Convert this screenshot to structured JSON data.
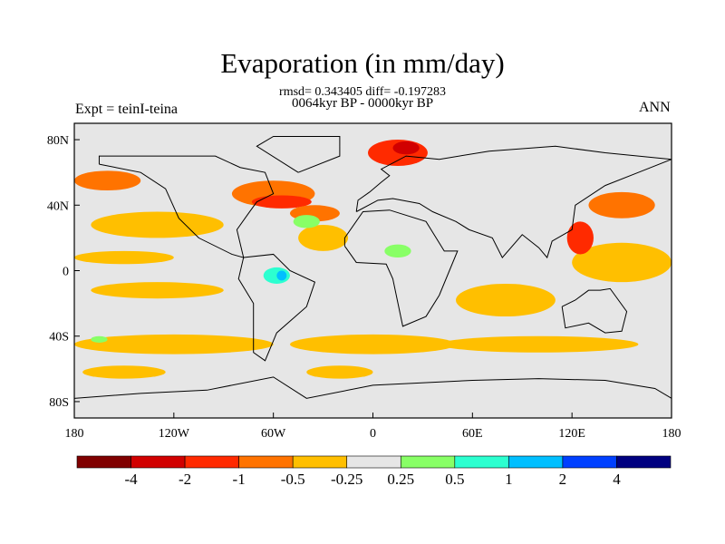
{
  "chart_data": {
    "type": "heatmap",
    "title": "Evaporation (in mm/day)",
    "subtitle_stats": "rmsd= 0.343405 diff= -0.197283",
    "subtitle_period": "0064kyr BP - 0000kyr BP",
    "left_label": "Expt = teinI-teina",
    "right_label": "ANN",
    "xlim": [
      -180,
      180
    ],
    "ylim": [
      -90,
      90
    ],
    "x_ticks": [
      {
        "v": -180,
        "label": "180"
      },
      {
        "v": -120,
        "label": "120W"
      },
      {
        "v": -60,
        "label": "60W"
      },
      {
        "v": 0,
        "label": "0"
      },
      {
        "v": 60,
        "label": "60E"
      },
      {
        "v": 120,
        "label": "120E"
      },
      {
        "v": 180,
        "label": "180"
      }
    ],
    "y_ticks": [
      {
        "v": 80,
        "label": "80N"
      },
      {
        "v": 40,
        "label": "40N"
      },
      {
        "v": 0,
        "label": "0"
      },
      {
        "v": -40,
        "label": "40S"
      },
      {
        "v": -80,
        "label": "80S"
      }
    ],
    "colorbar": {
      "colors": [
        "#800000",
        "#d10000",
        "#ff2a00",
        "#ff7300",
        "#ffbf00",
        "#e6e6e6",
        "#88ff66",
        "#2cffd0",
        "#00bfff",
        "#0040ff",
        "#000080"
      ],
      "labels": [
        "-4",
        "-2",
        "-1",
        "-0.5",
        "-0.25",
        "0.25",
        "0.5",
        "1",
        "2",
        "4"
      ]
    },
    "regions": [
      {
        "lon": -120,
        "lat": -45,
        "rx": 60,
        "ry": 6,
        "level": 4
      },
      {
        "lon": 0,
        "lat": -45,
        "rx": 50,
        "ry": 6,
        "level": 4
      },
      {
        "lon": 100,
        "lat": -45,
        "rx": 60,
        "ry": 5,
        "level": 4
      },
      {
        "lon": -150,
        "lat": -62,
        "rx": 25,
        "ry": 4,
        "level": 4
      },
      {
        "lon": -20,
        "lat": -62,
        "rx": 20,
        "ry": 4,
        "level": 4
      },
      {
        "lon": -130,
        "lat": 28,
        "rx": 40,
        "ry": 8,
        "level": 4
      },
      {
        "lon": -150,
        "lat": 8,
        "rx": 30,
        "ry": 4,
        "level": 4
      },
      {
        "lon": 150,
        "lat": 5,
        "rx": 30,
        "ry": 12,
        "level": 4
      },
      {
        "lon": 80,
        "lat": -18,
        "rx": 30,
        "ry": 10,
        "level": 4
      },
      {
        "lon": -130,
        "lat": -12,
        "rx": 40,
        "ry": 5,
        "level": 4
      },
      {
        "lon": -30,
        "lat": 20,
        "rx": 15,
        "ry": 8,
        "level": 4
      },
      {
        "lon": -60,
        "lat": 47,
        "rx": 25,
        "ry": 8,
        "level": 3
      },
      {
        "lon": -55,
        "lat": 42,
        "rx": 18,
        "ry": 4,
        "level": 2
      },
      {
        "lon": -35,
        "lat": 35,
        "rx": 15,
        "ry": 5,
        "level": 3
      },
      {
        "lon": 15,
        "lat": 72,
        "rx": 18,
        "ry": 8,
        "level": 2
      },
      {
        "lon": 20,
        "lat": 75,
        "rx": 8,
        "ry": 4,
        "level": 1
      },
      {
        "lon": -160,
        "lat": 55,
        "rx": 20,
        "ry": 6,
        "level": 3
      },
      {
        "lon": 150,
        "lat": 40,
        "rx": 20,
        "ry": 8,
        "level": 3
      },
      {
        "lon": 125,
        "lat": 20,
        "rx": 8,
        "ry": 10,
        "level": 2
      },
      {
        "lon": -40,
        "lat": 30,
        "rx": 8,
        "ry": 4,
        "level": 6
      },
      {
        "lon": 15,
        "lat": 12,
        "rx": 8,
        "ry": 4,
        "level": 6
      },
      {
        "lon": -58,
        "lat": -3,
        "rx": 8,
        "ry": 5,
        "level": 7
      },
      {
        "lon": -55,
        "lat": -3,
        "rx": 3,
        "ry": 3,
        "level": 8
      },
      {
        "lon": -165,
        "lat": -42,
        "rx": 5,
        "ry": 2,
        "level": 6
      }
    ]
  }
}
